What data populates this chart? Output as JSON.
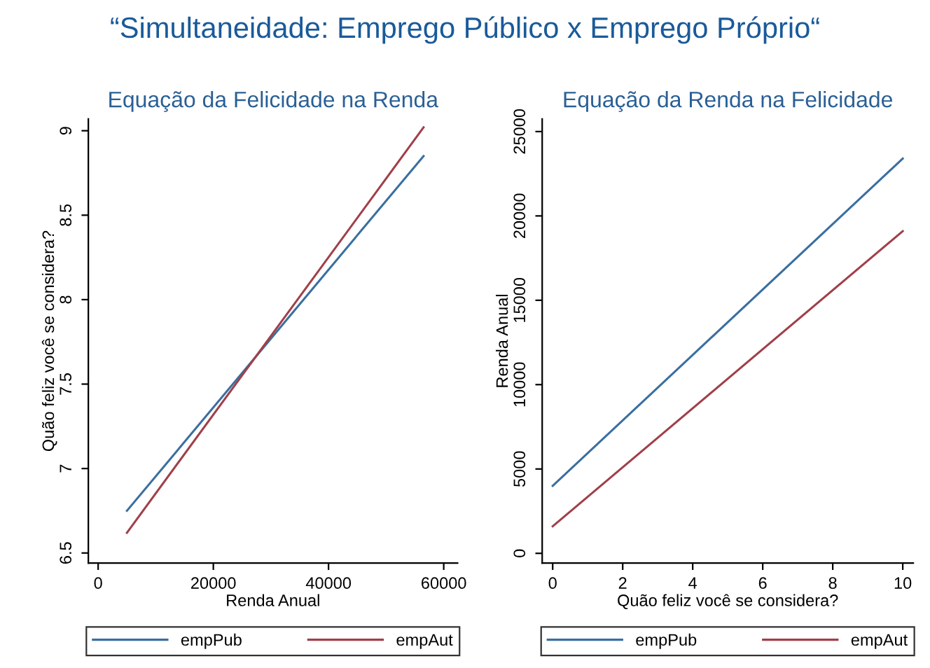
{
  "chart_data": [
    {
      "type": "other",
      "title": "“Simultaneidade: Emprego Público x Emprego Próprio“"
    },
    {
      "type": "line",
      "title": "Equação da Felicidade na Renda",
      "xlabel": "Renda Anual",
      "ylabel": "Quão feliz você se considera?",
      "xlim": [
        -1700,
        62400
      ],
      "ylim": [
        6.44,
        9.07
      ],
      "xticks": [
        0,
        20000,
        40000,
        60000
      ],
      "yticks": [
        6.5,
        7,
        7.5,
        8,
        8.5,
        9
      ],
      "grid": false,
      "legend": "bottom",
      "marker": "none",
      "line_style": "solid",
      "series": [
        {
          "name": "empPub",
          "color": "#3a6fa0",
          "x": [
            5000,
            56500
          ],
          "values": [
            6.75,
            8.85
          ]
        },
        {
          "name": "empAut",
          "color": "#a0404a",
          "x": [
            5000,
            56500
          ],
          "values": [
            6.62,
            9.02
          ]
        }
      ]
    },
    {
      "type": "line",
      "title": "Equação da Renda na Felicidade",
      "xlabel": "Quão feliz você se considera?",
      "ylabel": "Renda Anual",
      "xlim": [
        -0.3,
        10.3
      ],
      "ylim": [
        -580,
        25750
      ],
      "xticks": [
        0,
        2,
        4,
        6,
        8,
        10
      ],
      "yticks": [
        0,
        5000,
        10000,
        15000,
        20000,
        25000
      ],
      "grid": false,
      "legend": "bottom",
      "marker": "none",
      "line_style": "solid",
      "series": [
        {
          "name": "empPub",
          "color": "#3a6fa0",
          "x": [
            0,
            10
          ],
          "values": [
            4000,
            23400
          ]
        },
        {
          "name": "empAut",
          "color": "#a0404a",
          "x": [
            0,
            10
          ],
          "values": [
            1600,
            19100
          ]
        }
      ]
    }
  ]
}
